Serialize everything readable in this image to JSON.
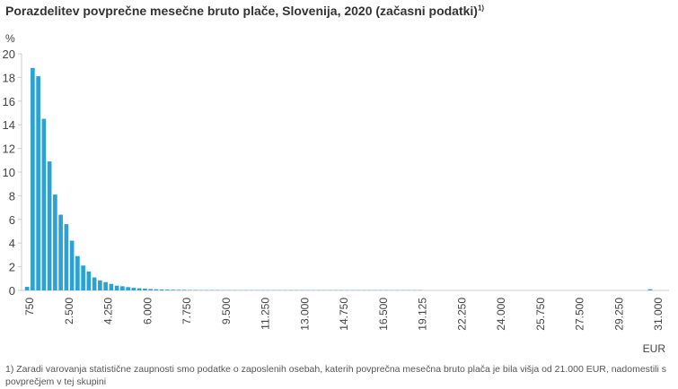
{
  "chart_data": {
    "type": "bar",
    "title": "Porazdelitev povprečne mesečne bruto plače, Slovenija, 2020 (začasni podatki)",
    "title_note_marker": "1)",
    "ylabel": "%",
    "xlabel": "EUR",
    "ylim": [
      0,
      20
    ],
    "yticks": [
      0,
      2,
      4,
      6,
      8,
      10,
      12,
      14,
      16,
      18,
      20
    ],
    "xtick_labels": [
      "750",
      "2.500",
      "4.250",
      "6.000",
      "7.750",
      "9.500",
      "11.250",
      "13.000",
      "14.750",
      "16.500",
      "19.125",
      "22.250",
      "24.000",
      "25.750",
      "27.500",
      "29.250",
      "31.000"
    ],
    "grid": false,
    "color": "#2aa3d4",
    "values": [
      0.3,
      18.8,
      18.1,
      14.5,
      10.9,
      8.1,
      6.4,
      5.6,
      4.2,
      2.9,
      2.1,
      1.6,
      1.1,
      0.85,
      0.7,
      0.55,
      0.4,
      0.35,
      0.28,
      0.22,
      0.18,
      0.15,
      0.12,
      0.1,
      0.08,
      0.07,
      0.06,
      0.05,
      0.05,
      0.04,
      0.04,
      0.03,
      0.03,
      0.03,
      0.03,
      0.02,
      0.02,
      0.02,
      0.02,
      0.02,
      0.02,
      0.02,
      0.02,
      0.02,
      0.02,
      0.02,
      0.02,
      0.02,
      0.02,
      0.02,
      0.02,
      0.02,
      0.02,
      0.02,
      0.02,
      0.02,
      0.02,
      0.02,
      0.02,
      0.02,
      0.02,
      0.02,
      0.02,
      0.02,
      0.02,
      0.02,
      0.02,
      0.02,
      0.02,
      0.02,
      0.02,
      0,
      0,
      0,
      0,
      0,
      0,
      0,
      0,
      0,
      0,
      0,
      0,
      0,
      0,
      0,
      0,
      0,
      0,
      0,
      0,
      0,
      0,
      0,
      0,
      0,
      0,
      0,
      0,
      0,
      0,
      0,
      0,
      0,
      0,
      0,
      0,
      0,
      0,
      0,
      0,
      0.1
    ]
  },
  "footnote": "1) Zaradi varovanja statistične zaupnosti smo podatke o zaposlenih osebah, katerih povprečna mesečna bruto plača je bila višja od 21.000 EUR, nadomestili s povprečjem v tej skupini"
}
